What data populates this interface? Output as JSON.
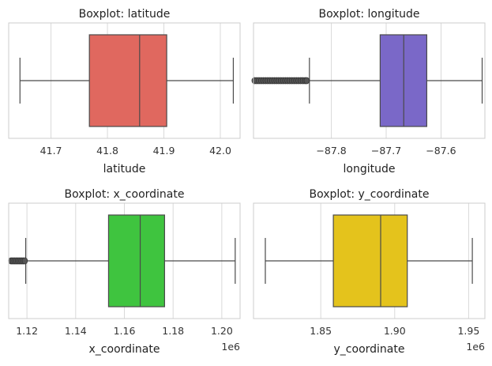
{
  "chart_data": [
    {
      "type": "boxplot",
      "title": "Boxplot: latitude",
      "xlabel": "latitude",
      "offset_label": "",
      "color": "#e0685f",
      "xlim": [
        41.625,
        42.035
      ],
      "ticks": [
        41.7,
        41.8,
        41.9,
        42.0
      ],
      "tick_labels": [
        "41.7",
        "41.8",
        "41.9",
        "42.0"
      ],
      "whisker_low": 41.645,
      "q1": 41.768,
      "median": 41.857,
      "q3": 41.905,
      "whisker_high": 42.023,
      "outliers": [],
      "grid": true
    },
    {
      "type": "boxplot",
      "title": "Boxplot: longitude",
      "xlabel": "longitude",
      "offset_label": "",
      "color": "#7a68c8",
      "xlim": [
        -87.942,
        -87.52
      ],
      "ticks": [
        -87.8,
        -87.7,
        -87.6
      ],
      "tick_labels": [
        "−87.8",
        "−87.7",
        "−87.6"
      ],
      "whisker_low": -87.84,
      "q1": -87.711,
      "median": -87.668,
      "q3": -87.626,
      "whisker_high": -87.525,
      "outliers": [
        -87.94,
        -87.936,
        -87.932,
        -87.928,
        -87.924,
        -87.92,
        -87.916,
        -87.912,
        -87.908,
        -87.904,
        -87.9,
        -87.896,
        -87.892,
        -87.888,
        -87.884,
        -87.88,
        -87.876,
        -87.872,
        -87.868,
        -87.864,
        -87.86,
        -87.856,
        -87.852,
        -87.848,
        -87.845
      ],
      "grid": true
    },
    {
      "type": "boxplot",
      "title": "Boxplot: x_coordinate",
      "xlabel": "x_coordinate",
      "offset_label": "1e6",
      "color": "#3fc43f",
      "xlim": [
        1.1125,
        1.2075
      ],
      "ticks": [
        1.12,
        1.14,
        1.16,
        1.18,
        1.2
      ],
      "tick_labels": [
        "1.12",
        "1.14",
        "1.16",
        "1.18",
        "1.20"
      ],
      "whisker_low": 1.1195,
      "q1": 1.1535,
      "median": 1.1665,
      "q3": 1.1765,
      "whisker_high": 1.2055,
      "outliers": [
        1.1135,
        1.1142,
        1.1149,
        1.1156,
        1.1163,
        1.117,
        1.1177,
        1.1184,
        1.1191
      ],
      "grid": true
    },
    {
      "type": "boxplot",
      "title": "Boxplot: y_coordinate",
      "xlabel": "y_coordinate",
      "offset_label": "1e6",
      "color": "#e4c31c",
      "xlim": [
        1.8045,
        1.961
      ],
      "ticks": [
        1.85,
        1.9,
        1.95
      ],
      "tick_labels": [
        "1.85",
        "1.90",
        "1.95"
      ],
      "whisker_low": 1.8125,
      "q1": 1.8585,
      "median": 1.8905,
      "q3": 1.9085,
      "whisker_high": 1.9525,
      "outliers": [],
      "grid": true
    }
  ]
}
